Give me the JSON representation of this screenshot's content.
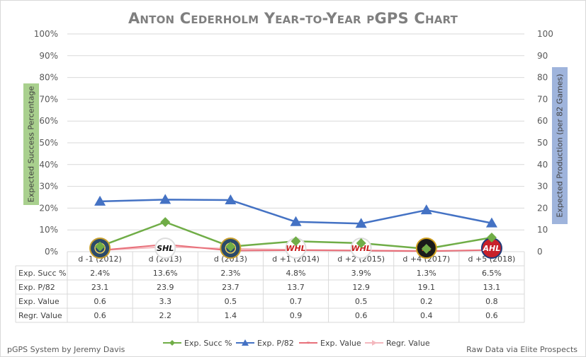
{
  "title": "Anton Cederholm Year-to-Year pGPS Chart",
  "y_left_label": "Expected Success Percentage",
  "y_right_label": "Expected Production (per 82 Games)",
  "footer_left": "pGPS System by Jeremy Davis",
  "footer_right": "Raw Data via Elite Prospects",
  "logo_labels": [
    "",
    "SHL",
    "",
    "WHL",
    "WHL",
    "HOCKEY ALLSVENSKAN",
    "AHL"
  ],
  "colors": {
    "succ": "#70ad47",
    "p82": "#4472c4",
    "value": "#e8707a",
    "regr": "#f4b8be"
  },
  "chart_data": {
    "type": "line",
    "title": "Anton Cederholm Year-to-Year pGPS Chart",
    "categories": [
      "d -1 (2012)",
      "d (2013)",
      "d (2013)",
      "d +1 (2014)",
      "d +2 (2015)",
      "d +4 (2017)",
      "d +5 (2018)"
    ],
    "y_left": {
      "label": "Expected Success Percentage",
      "min": 0,
      "max": 100,
      "ticks": [
        "0%",
        "10%",
        "20%",
        "30%",
        "40%",
        "50%",
        "60%",
        "70%",
        "80%",
        "90%",
        "100%"
      ]
    },
    "y_right": {
      "label": "Expected Production (per 82 Games)",
      "min": 0,
      "max": 100,
      "ticks": [
        "0",
        "10",
        "20",
        "30",
        "40",
        "50",
        "60",
        "70",
        "80",
        "90",
        "100"
      ]
    },
    "series": [
      {
        "name": "Exp. Succ %",
        "axis": "left",
        "marker": "diamond",
        "values": [
          2.4,
          13.6,
          2.3,
          4.8,
          3.9,
          1.3,
          6.5
        ],
        "labels": [
          "2.4%",
          "13.6%",
          "2.3%",
          "4.8%",
          "3.9%",
          "1.3%",
          "6.5%"
        ]
      },
      {
        "name": "Exp. P/82",
        "axis": "right",
        "marker": "triangle",
        "values": [
          23.1,
          23.9,
          23.7,
          13.7,
          12.9,
          19.1,
          13.1
        ],
        "labels": [
          "23.1",
          "23.9",
          "23.7",
          "13.7",
          "12.9",
          "19.1",
          "13.1"
        ]
      },
      {
        "name": "Exp. Value",
        "axis": "right",
        "marker": "line",
        "values": [
          0.6,
          3.3,
          0.5,
          0.7,
          0.5,
          0.2,
          0.8
        ],
        "labels": [
          "0.6",
          "3.3",
          "0.5",
          "0.7",
          "0.5",
          "0.2",
          "0.8"
        ]
      },
      {
        "name": "Regr. Value",
        "axis": "right",
        "marker": "line",
        "values": [
          0.6,
          2.2,
          1.4,
          0.9,
          0.6,
          0.4,
          0.6
        ],
        "labels": [
          "0.6",
          "2.2",
          "1.4",
          "0.9",
          "0.6",
          "0.4",
          "0.6"
        ]
      }
    ],
    "table_row_labels": [
      "Exp. Succ %",
      "Exp. P/82",
      "Exp. Value",
      "Regr. Value"
    ],
    "legend_position": "bottom",
    "grid": true
  }
}
